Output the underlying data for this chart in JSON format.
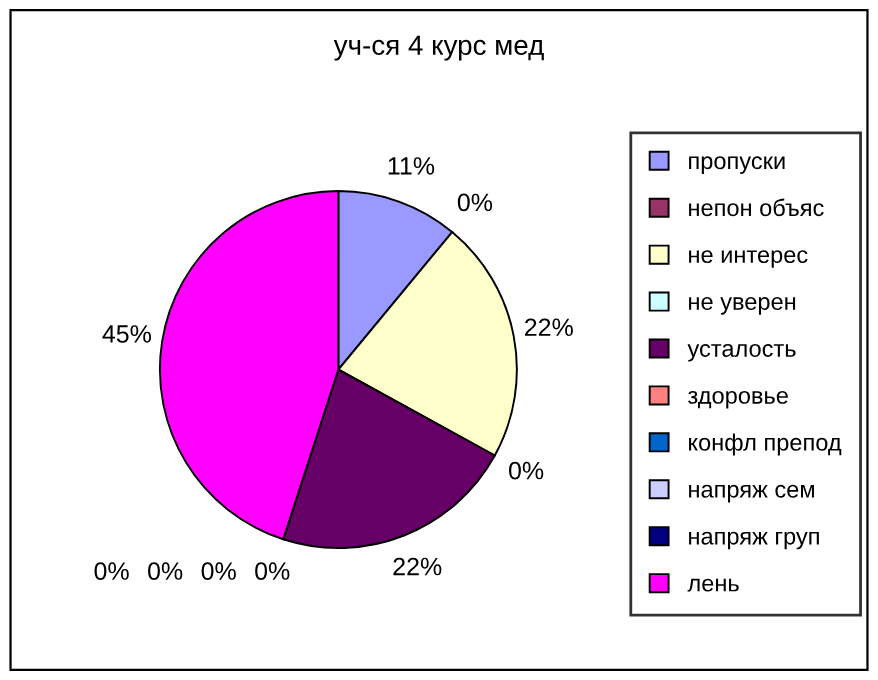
{
  "chart_data": {
    "type": "pie",
    "title": "уч-ся 4 курс мед",
    "categories": [
      "пропуски",
      "непон объяс",
      "не интерес",
      "не уверен",
      "усталость",
      "здоровье",
      "конфл препод",
      "напряж сем",
      "напряж груп",
      "лень"
    ],
    "values": [
      11,
      0,
      22,
      0,
      22,
      0,
      0,
      0,
      0,
      45
    ],
    "value_labels": [
      "11%",
      "0%",
      "22%",
      "0%",
      "22%",
      "0%",
      "0%",
      "0%",
      "0%",
      "45%"
    ],
    "colors": [
      "#9999ff",
      "#993366",
      "#ffffcc",
      "#ccffff",
      "#660066",
      "#ff8080",
      "#0066cc",
      "#ccccff",
      "#000080",
      "#ff00ff"
    ],
    "legend": "right"
  }
}
